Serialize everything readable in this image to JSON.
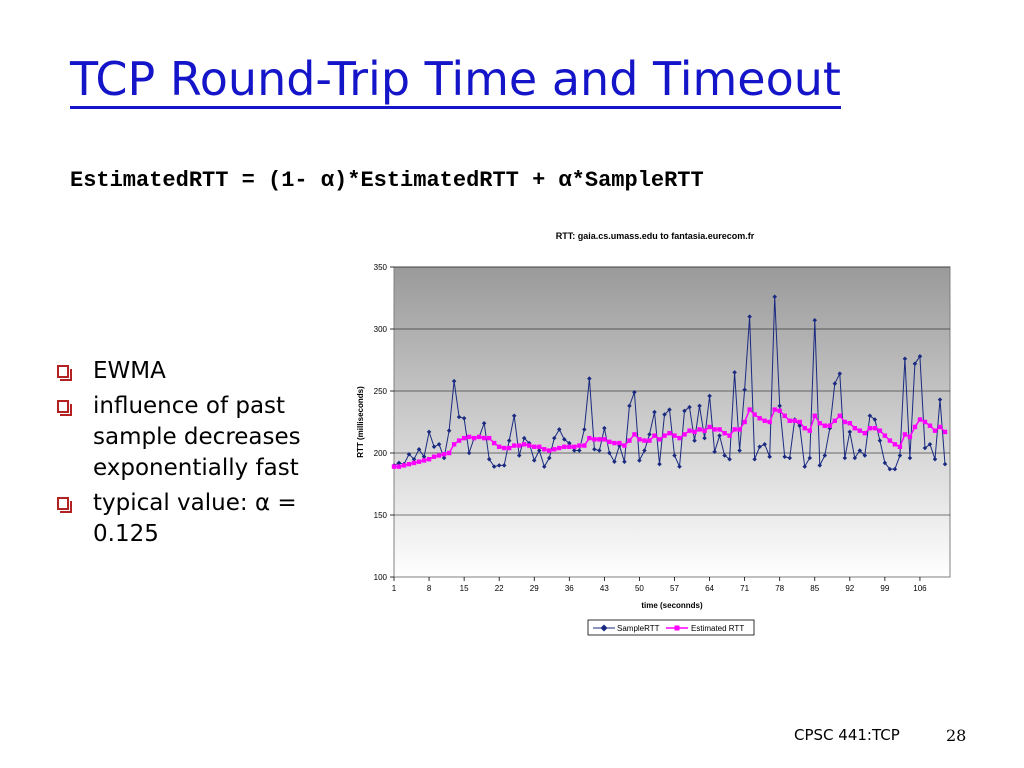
{
  "slide": {
    "title": "TCP Round-Trip Time and Timeout",
    "formula": "EstimatedRTT = (1- α)*EstimatedRTT + α*SampleRTT",
    "bullets": [
      "EWMA",
      "influence of past sample decreases exponentially fast",
      "typical value: α = 0.125"
    ],
    "footer_course": "CPSC 441:TCP",
    "page_number": "28"
  },
  "colors": {
    "title": "#1414c8",
    "bullet_marker": "#b22222",
    "sample_series": "#1a2a80",
    "estimated_series": "#ff00ff"
  },
  "chart_data": {
    "type": "line",
    "title": "RTT: gaia.cs.umass.edu to fantasia.eurecom.fr",
    "xlabel": "time (seconnds)",
    "ylabel": "RTT (milliseconds)",
    "ylim": [
      100,
      350
    ],
    "yticks": [
      100,
      150,
      200,
      250,
      300,
      350
    ],
    "xlim": [
      1,
      112
    ],
    "xticks": [
      1,
      8,
      15,
      22,
      29,
      36,
      43,
      50,
      57,
      64,
      71,
      78,
      85,
      92,
      99,
      106
    ],
    "legend_position": "bottom",
    "grid": "horizontal",
    "series": [
      {
        "name": "SampleRTT",
        "marker": "diamond",
        "values": [
          190,
          192,
          191,
          199,
          195,
          203,
          197,
          217,
          205,
          207,
          196,
          218,
          258,
          229,
          228,
          200,
          212,
          213,
          224,
          195,
          189,
          190,
          190,
          210,
          230,
          198,
          212,
          208,
          194,
          202,
          189,
          196,
          212,
          219,
          211,
          208,
          202,
          202,
          219,
          260,
          203,
          202,
          220,
          200,
          193,
          206,
          193,
          238,
          249,
          194,
          202,
          215,
          233,
          191,
          231,
          235,
          198,
          189,
          234,
          237,
          210,
          238,
          212,
          246,
          201,
          214,
          198,
          195,
          265,
          202,
          251,
          310,
          195,
          205,
          207,
          197,
          326,
          238,
          197,
          196,
          227,
          222,
          189,
          196,
          307,
          190,
          198,
          220,
          256,
          264,
          196,
          217,
          196,
          202,
          198,
          230,
          227,
          210,
          192,
          187,
          187,
          198,
          276,
          196,
          272,
          278,
          204,
          207,
          195,
          243,
          191
        ]
      },
      {
        "name": "Estimated RTT",
        "marker": "square",
        "values": [
          189,
          189,
          190,
          191,
          192,
          193,
          194,
          195,
          197,
          198,
          199,
          200,
          207,
          210,
          212,
          213,
          212,
          213,
          212,
          212,
          208,
          205,
          204,
          204,
          206,
          206,
          207,
          206,
          205,
          205,
          203,
          202,
          203,
          204,
          205,
          205,
          205,
          206,
          206,
          212,
          211,
          211,
          211,
          209,
          208,
          208,
          206,
          210,
          215,
          211,
          210,
          210,
          214,
          211,
          214,
          216,
          214,
          212,
          215,
          218,
          217,
          219,
          218,
          221,
          219,
          219,
          216,
          214,
          219,
          219,
          225,
          235,
          231,
          228,
          226,
          225,
          235,
          234,
          230,
          226,
          226,
          225,
          220,
          218,
          230,
          224,
          222,
          222,
          226,
          230,
          225,
          224,
          220,
          218,
          216,
          220,
          220,
          218,
          214,
          210,
          207,
          205,
          215,
          213,
          221,
          227,
          225,
          222,
          218,
          221,
          217
        ]
      }
    ]
  }
}
